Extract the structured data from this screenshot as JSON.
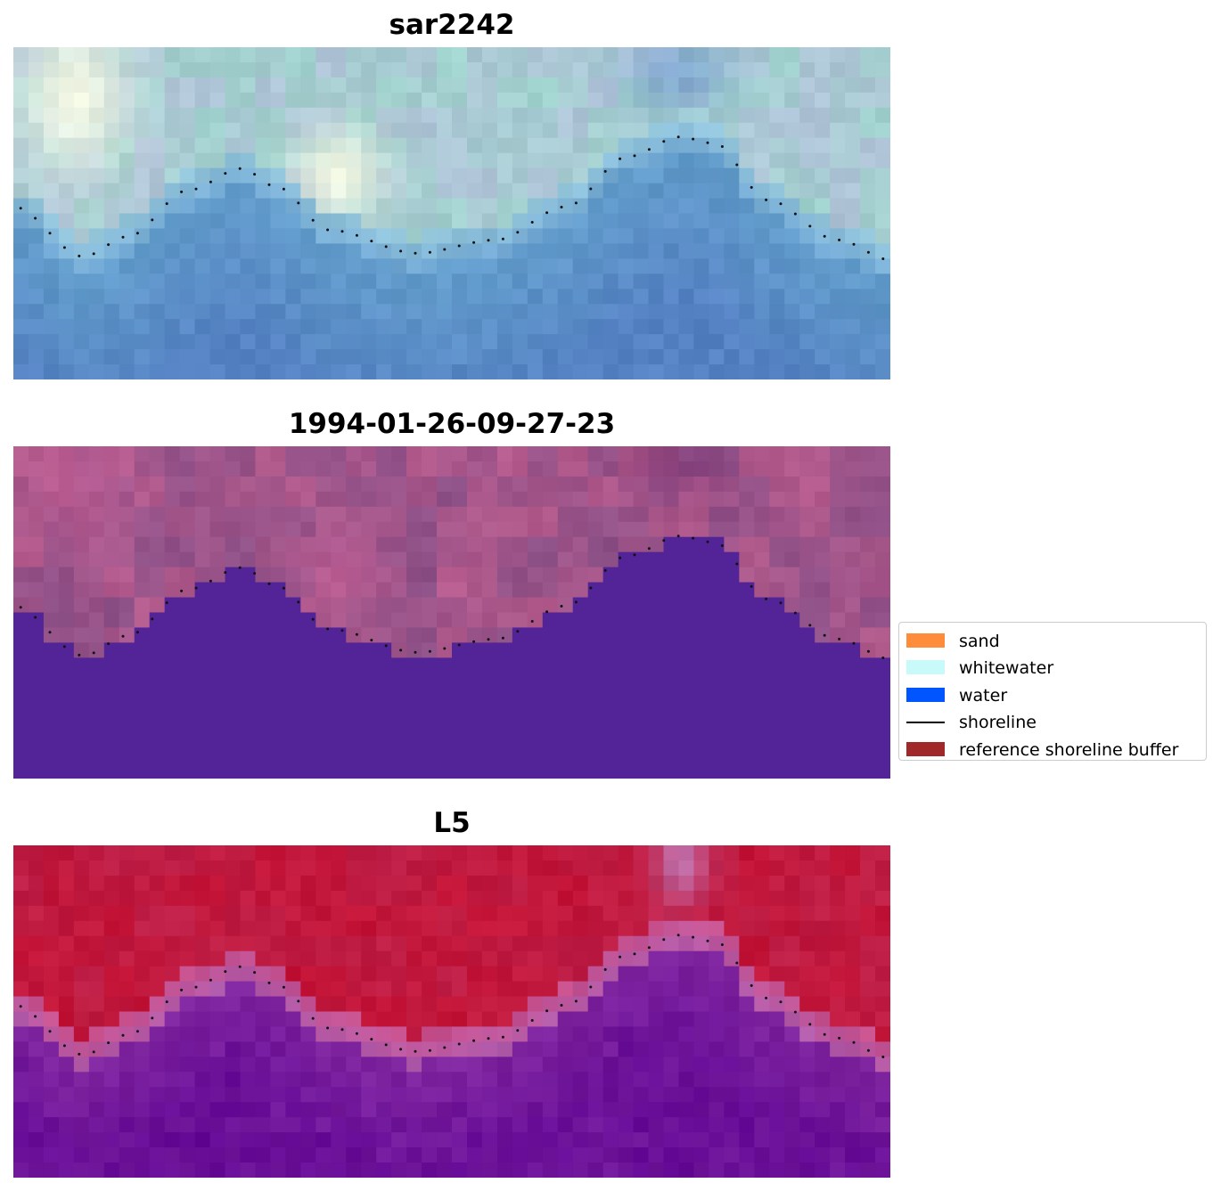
{
  "panels": [
    {
      "title": "sar2242",
      "style": "sar"
    },
    {
      "title": "1994-01-26-09-27-23",
      "style": "class"
    },
    {
      "title": "L5",
      "style": "index"
    }
  ],
  "legend": {
    "items": [
      {
        "label": "sand",
        "color": "#ff8c3a",
        "kind": "patch"
      },
      {
        "label": "whitewater",
        "color": "#c8fafa",
        "kind": "patch"
      },
      {
        "label": "water",
        "color": "#0055ff",
        "kind": "patch"
      },
      {
        "label": "shoreline",
        "color": "#000000",
        "kind": "line"
      },
      {
        "label": "reference shoreline buffer",
        "color": "#a02828",
        "kind": "patch"
      }
    ]
  }
}
